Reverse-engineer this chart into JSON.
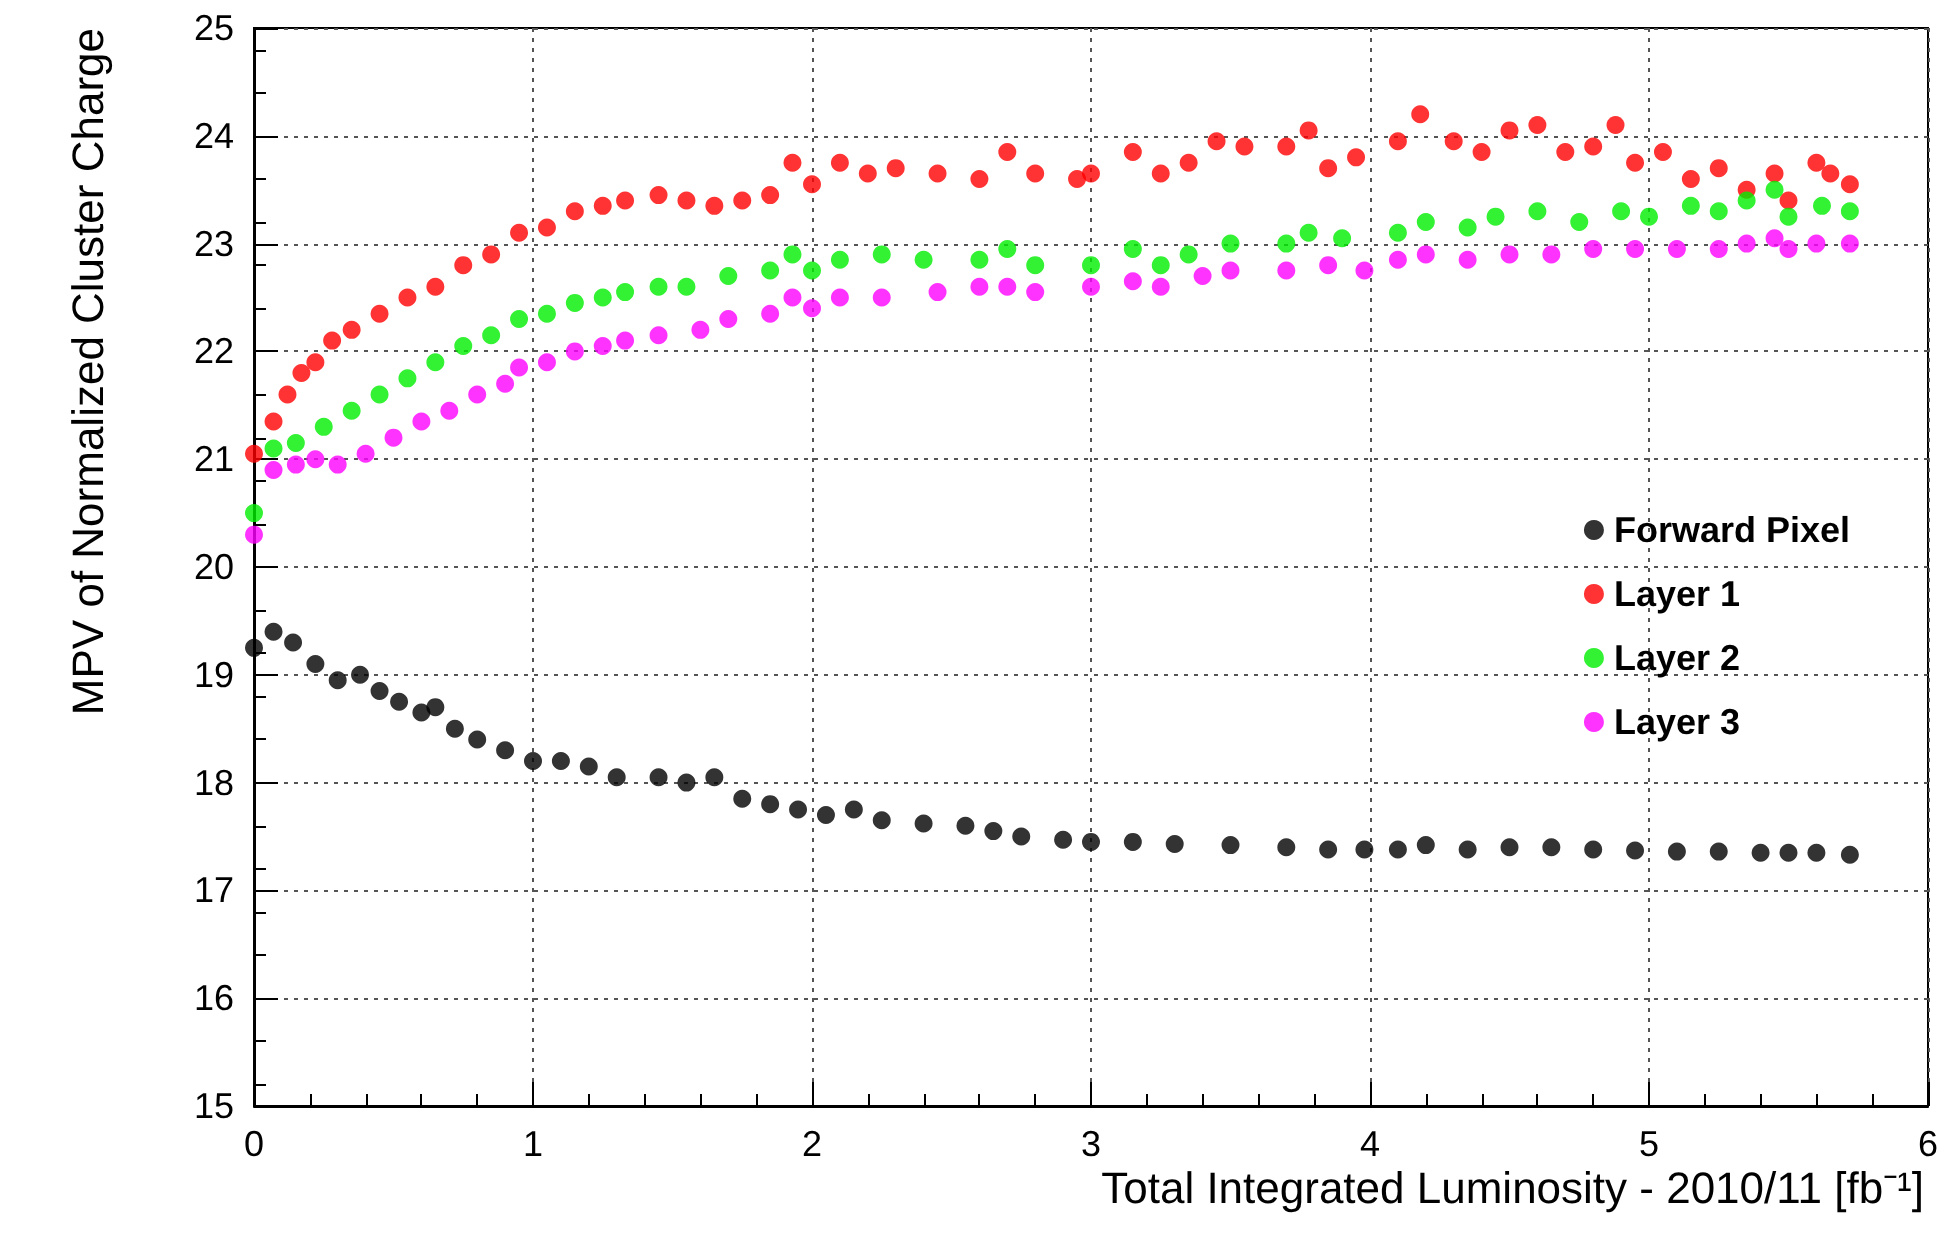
{
  "chart_data": {
    "type": "scatter",
    "xlabel": "Total Integrated Luminosity - 2010/11 [fb⁻¹]",
    "ylabel": "MPV of Normalized Cluster Charge",
    "xlim": [
      0,
      6
    ],
    "xticks": [
      0,
      1,
      2,
      3,
      4,
      5,
      6
    ],
    "ylim": [
      15,
      25
    ],
    "yticks": [
      15,
      16,
      17,
      18,
      19,
      20,
      21,
      22,
      23,
      24,
      25
    ],
    "grid": true,
    "legend": "right",
    "marker": "circle",
    "series": [
      {
        "name": "Forward Pixel",
        "color": "#000000",
        "x": [
          0.0,
          0.07,
          0.14,
          0.22,
          0.3,
          0.38,
          0.45,
          0.52,
          0.6,
          0.65,
          0.72,
          0.8,
          0.9,
          1.0,
          1.1,
          1.2,
          1.3,
          1.45,
          1.55,
          1.65,
          1.75,
          1.85,
          1.95,
          2.05,
          2.15,
          2.25,
          2.4,
          2.55,
          2.65,
          2.75,
          2.9,
          3.0,
          3.15,
          3.3,
          3.5,
          3.7,
          3.85,
          3.98,
          4.1,
          4.2,
          4.35,
          4.5,
          4.65,
          4.8,
          4.95,
          5.1,
          5.25,
          5.4,
          5.5,
          5.6,
          5.72
        ],
        "values": [
          19.25,
          19.4,
          19.3,
          19.1,
          18.95,
          19.0,
          18.85,
          18.75,
          18.65,
          18.7,
          18.5,
          18.4,
          18.3,
          18.2,
          18.2,
          18.15,
          18.05,
          18.05,
          18.0,
          18.05,
          17.85,
          17.8,
          17.75,
          17.7,
          17.75,
          17.65,
          17.62,
          17.6,
          17.55,
          17.5,
          17.47,
          17.45,
          17.45,
          17.43,
          17.42,
          17.4,
          17.38,
          17.38,
          17.38,
          17.42,
          17.38,
          17.4,
          17.4,
          17.38,
          17.37,
          17.36,
          17.36,
          17.35,
          17.35,
          17.35,
          17.33
        ]
      },
      {
        "name": "Layer 1",
        "color": "#ff0000",
        "x": [
          0.0,
          0.07,
          0.12,
          0.17,
          0.22,
          0.28,
          0.35,
          0.45,
          0.55,
          0.65,
          0.75,
          0.85,
          0.95,
          1.05,
          1.15,
          1.25,
          1.33,
          1.45,
          1.55,
          1.65,
          1.75,
          1.85,
          1.93,
          2.0,
          2.1,
          2.2,
          2.3,
          2.45,
          2.6,
          2.7,
          2.8,
          2.95,
          3.0,
          3.15,
          3.25,
          3.35,
          3.45,
          3.55,
          3.7,
          3.78,
          3.85,
          3.95,
          4.1,
          4.18,
          4.3,
          4.4,
          4.5,
          4.6,
          4.7,
          4.8,
          4.88,
          4.95,
          5.05,
          5.15,
          5.25,
          5.35,
          5.45,
          5.5,
          5.6,
          5.65,
          5.72
        ],
        "values": [
          21.05,
          21.35,
          21.6,
          21.8,
          21.9,
          22.1,
          22.2,
          22.35,
          22.5,
          22.6,
          22.8,
          22.9,
          23.1,
          23.15,
          23.3,
          23.35,
          23.4,
          23.45,
          23.4,
          23.35,
          23.4,
          23.45,
          23.75,
          23.55,
          23.75,
          23.65,
          23.7,
          23.65,
          23.6,
          23.85,
          23.65,
          23.6,
          23.65,
          23.85,
          23.65,
          23.75,
          23.95,
          23.9,
          23.9,
          24.05,
          23.7,
          23.8,
          23.95,
          24.2,
          23.95,
          23.85,
          24.05,
          24.1,
          23.85,
          23.9,
          24.1,
          23.75,
          23.85,
          23.6,
          23.7,
          23.5,
          23.65,
          23.4,
          23.75,
          23.65,
          23.55
        ]
      },
      {
        "name": "Layer 2",
        "color": "#00ee00",
        "x": [
          0.0,
          0.07,
          0.15,
          0.25,
          0.35,
          0.45,
          0.55,
          0.65,
          0.75,
          0.85,
          0.95,
          1.05,
          1.15,
          1.25,
          1.33,
          1.45,
          1.55,
          1.7,
          1.85,
          1.93,
          2.0,
          2.1,
          2.25,
          2.4,
          2.6,
          2.7,
          2.8,
          3.0,
          3.15,
          3.25,
          3.35,
          3.5,
          3.7,
          3.78,
          3.9,
          4.1,
          4.2,
          4.35,
          4.45,
          4.6,
          4.75,
          4.9,
          5.0,
          5.15,
          5.25,
          5.35,
          5.45,
          5.5,
          5.62,
          5.72
        ],
        "values": [
          20.5,
          21.1,
          21.15,
          21.3,
          21.45,
          21.6,
          21.75,
          21.9,
          22.05,
          22.15,
          22.3,
          22.35,
          22.45,
          22.5,
          22.55,
          22.6,
          22.6,
          22.7,
          22.75,
          22.9,
          22.75,
          22.85,
          22.9,
          22.85,
          22.85,
          22.95,
          22.8,
          22.8,
          22.95,
          22.8,
          22.9,
          23.0,
          23.0,
          23.1,
          23.05,
          23.1,
          23.2,
          23.15,
          23.25,
          23.3,
          23.2,
          23.3,
          23.25,
          23.35,
          23.3,
          23.4,
          23.5,
          23.25,
          23.35,
          23.3
        ]
      },
      {
        "name": "Layer 3",
        "color": "#ff00ff",
        "x": [
          0.0,
          0.07,
          0.15,
          0.22,
          0.3,
          0.4,
          0.5,
          0.6,
          0.7,
          0.8,
          0.9,
          0.95,
          1.05,
          1.15,
          1.25,
          1.33,
          1.45,
          1.6,
          1.7,
          1.85,
          1.93,
          2.0,
          2.1,
          2.25,
          2.45,
          2.6,
          2.7,
          2.8,
          3.0,
          3.15,
          3.25,
          3.4,
          3.5,
          3.7,
          3.85,
          3.98,
          4.1,
          4.2,
          4.35,
          4.5,
          4.65,
          4.8,
          4.95,
          5.1,
          5.25,
          5.35,
          5.45,
          5.5,
          5.6,
          5.72
        ],
        "values": [
          20.3,
          20.9,
          20.95,
          21.0,
          20.95,
          21.05,
          21.2,
          21.35,
          21.45,
          21.6,
          21.7,
          21.85,
          21.9,
          22.0,
          22.05,
          22.1,
          22.15,
          22.2,
          22.3,
          22.35,
          22.5,
          22.4,
          22.5,
          22.5,
          22.55,
          22.6,
          22.6,
          22.55,
          22.6,
          22.65,
          22.6,
          22.7,
          22.75,
          22.75,
          22.8,
          22.75,
          22.85,
          22.9,
          22.85,
          22.9,
          22.9,
          22.95,
          22.95,
          22.95,
          22.95,
          23.0,
          23.05,
          22.95,
          23.0,
          23.0
        ]
      }
    ]
  }
}
